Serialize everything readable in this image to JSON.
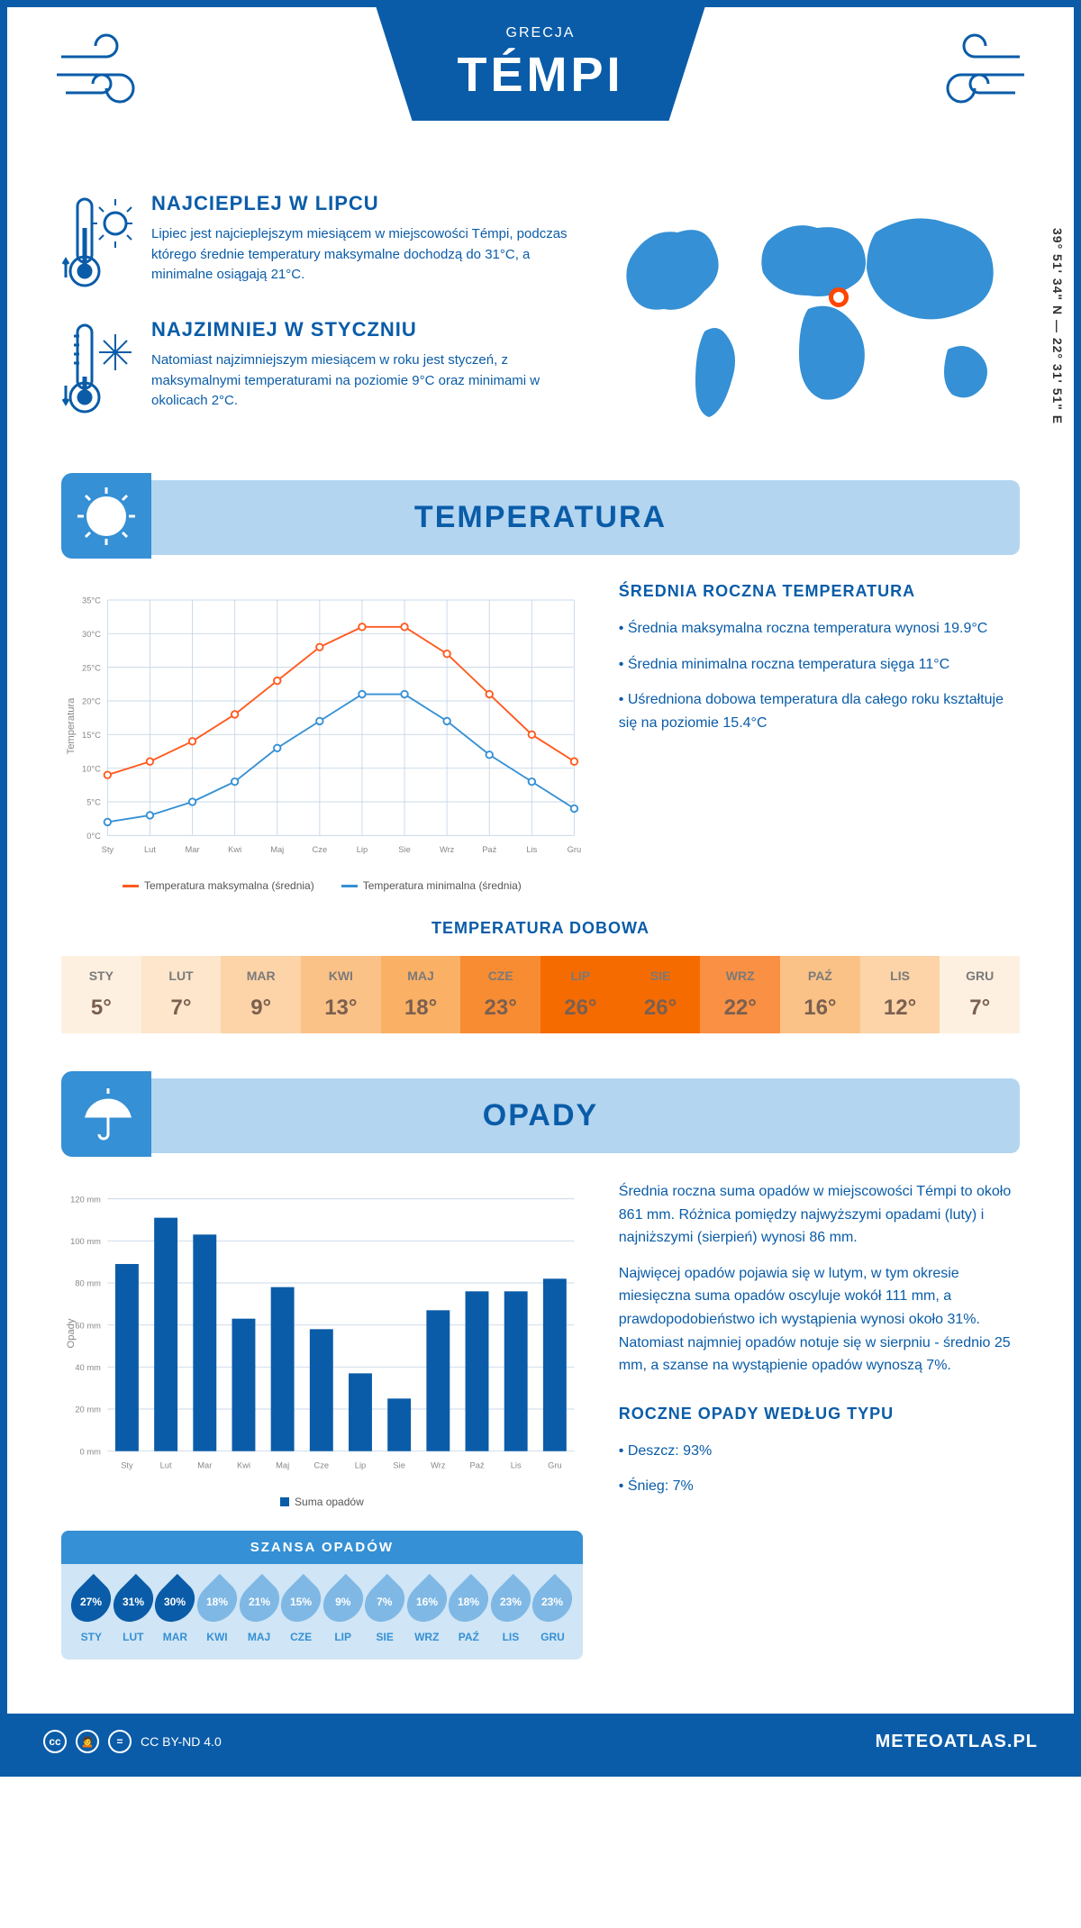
{
  "header": {
    "title": "TÉMPI",
    "country": "GRECJA"
  },
  "coords": "39° 51' 34\" N — 22° 31' 51\" E",
  "hottest": {
    "title": "NAJCIEPLEJ W LIPCU",
    "text": "Lipiec jest najcieplejszym miesiącem w miejscowości Témpi, podczas którego średnie temperatury maksymalne dochodzą do 31°C, a minimalne osiągają 21°C."
  },
  "coldest": {
    "title": "NAJZIMNIEJ W STYCZNIU",
    "text": "Natomiast najzimniejszym miesiącem w roku jest styczeń, z maksymalnymi temperaturami na poziomie 9°C oraz minimami w okolicach 2°C."
  },
  "section_temp": {
    "heading": "TEMPERATURA"
  },
  "temp_stats": {
    "heading": "ŚREDNIA ROCZNA TEMPERATURA",
    "p1": "• Średnia maksymalna roczna temperatura wynosi 19.9°C",
    "p2": "• Średnia minimalna roczna temperatura sięga 11°C",
    "p3": "• Uśredniona dobowa temperatura dla całego roku kształtuje się na poziomie 15.4°C"
  },
  "months": [
    "Sty",
    "Lut",
    "Mar",
    "Kwi",
    "Maj",
    "Cze",
    "Lip",
    "Sie",
    "Wrz",
    "Paź",
    "Lis",
    "Gru"
  ],
  "months_uc": [
    "STY",
    "LUT",
    "MAR",
    "KWI",
    "MAJ",
    "CZE",
    "LIP",
    "SIE",
    "WRZ",
    "PAŹ",
    "LIS",
    "GRU"
  ],
  "temp_chart": {
    "ylim": [
      0,
      35
    ],
    "ytick": 5,
    "max_color": "#ff5a1f",
    "min_color": "#3590d5",
    "grid_color": "#c8d8e8",
    "max": [
      9,
      11,
      14,
      18,
      23,
      28,
      31,
      31,
      27,
      21,
      15,
      11
    ],
    "min": [
      2,
      3,
      5,
      8,
      13,
      17,
      21,
      21,
      17,
      12,
      8,
      4
    ],
    "legend_max": "Temperatura maksymalna (średnia)",
    "legend_min": "Temperatura minimalna (średnia)",
    "ylabel": "Temperatura"
  },
  "daily_temp": {
    "heading": "TEMPERATURA DOBOWA",
    "values": [
      "5°",
      "7°",
      "9°",
      "13°",
      "18°",
      "23°",
      "26°",
      "26°",
      "22°",
      "16°",
      "12°",
      "7°"
    ],
    "colors": [
      "#fef0e0",
      "#fde6cc",
      "#fcd4a8",
      "#fbc287",
      "#fab065",
      "#f88c32",
      "#f56b00",
      "#f56b00",
      "#f99043",
      "#fbc287",
      "#fcd4a8",
      "#fef0e0"
    ]
  },
  "section_precip": {
    "heading": "OPADY"
  },
  "precip_chart": {
    "ylim": [
      0,
      120
    ],
    "ytick": 20,
    "values": [
      89,
      111,
      103,
      63,
      78,
      58,
      37,
      25,
      67,
      76,
      76,
      82
    ],
    "bar_color": "#0a5ca8",
    "grid_color": "#c8d8e8",
    "legend": "Suma opadów",
    "ylabel": "Opady"
  },
  "precip_text": {
    "p1": "Średnia roczna suma opadów w miejscowości Témpi to około 861 mm. Różnica pomiędzy najwyższymi opadami (luty) i najniższymi (sierpień) wynosi 86 mm.",
    "p2": "Najwięcej opadów pojawia się w lutym, w tym okresie miesięczna suma opadów oscyluje wokół 111 mm, a prawdopodobieństwo ich wystąpienia wynosi około 31%. Natomiast najmniej opadów notuje się w sierpniu - średnio 25 mm, a szanse na wystąpienie opadów wynoszą 7%."
  },
  "chance": {
    "heading": "SZANSA OPADÓW",
    "values": [
      "27%",
      "31%",
      "30%",
      "18%",
      "21%",
      "15%",
      "9%",
      "7%",
      "16%",
      "18%",
      "23%",
      "23%"
    ],
    "dark": [
      true,
      true,
      true,
      false,
      false,
      false,
      false,
      false,
      false,
      false,
      false,
      false
    ]
  },
  "precip_type": {
    "heading": "ROCZNE OPADY WEDŁUG TYPU",
    "rain": "• Deszcz: 93%",
    "snow": "• Śnieg: 7%"
  },
  "footer": {
    "license": "CC BY-ND 4.0",
    "brand": "METEOATLAS.PL"
  }
}
